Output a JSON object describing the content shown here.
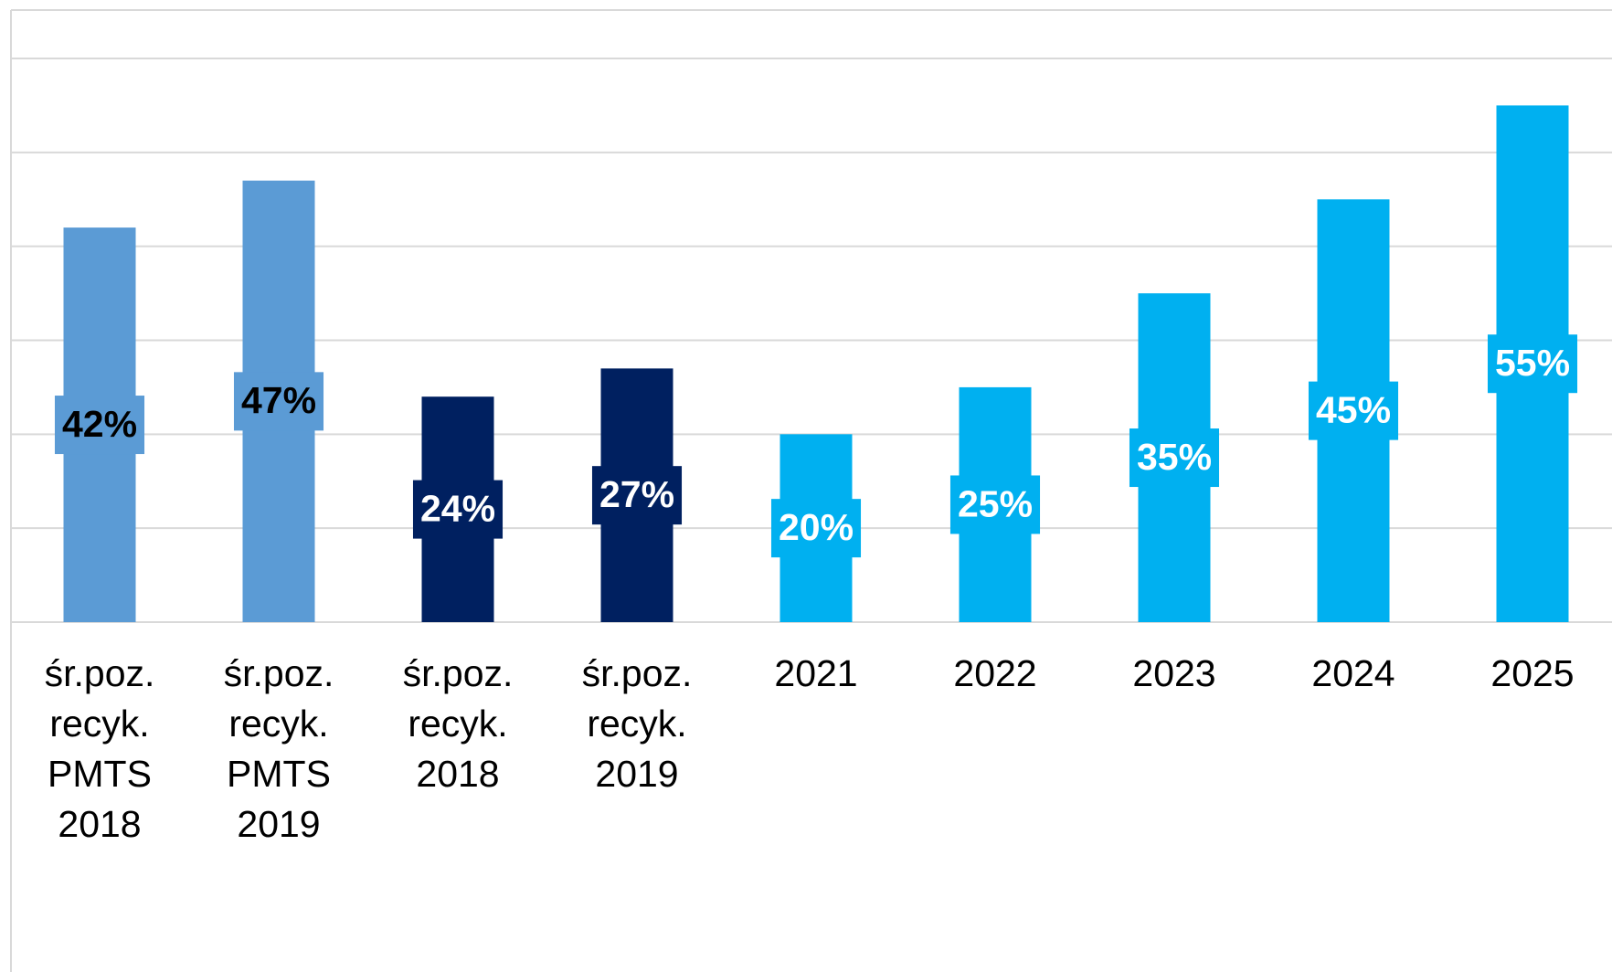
{
  "chart_data": {
    "type": "bar",
    "categories": [
      "śr.poz. recyk. PMTS 2018",
      "śr.poz. recyk. PMTS 2019",
      "śr.poz. recyk. 2018",
      "śr.poz. recyk. 2019",
      "2021",
      "2022",
      "2023",
      "2024",
      "2025"
    ],
    "values": [
      42,
      47,
      24,
      27,
      20,
      25,
      35,
      45,
      55
    ],
    "value_labels": [
      "42%",
      "47%",
      "24%",
      "27%",
      "20%",
      "25%",
      "35%",
      "45%",
      "55%"
    ],
    "colors": [
      "#5b9bd5",
      "#5b9bd5",
      "#002060",
      "#002060",
      "#00b0f0",
      "#00b0f0",
      "#00b0f0",
      "#00b0f0",
      "#00b0f0"
    ],
    "label_colors": [
      "#000000",
      "#000000",
      "#ffffff",
      "#ffffff",
      "#ffffff",
      "#ffffff",
      "#ffffff",
      "#ffffff",
      "#ffffff"
    ],
    "ylim": [
      0,
      60
    ],
    "yticks": [
      0,
      10,
      20,
      30,
      40,
      50,
      60
    ],
    "grid": true
  }
}
